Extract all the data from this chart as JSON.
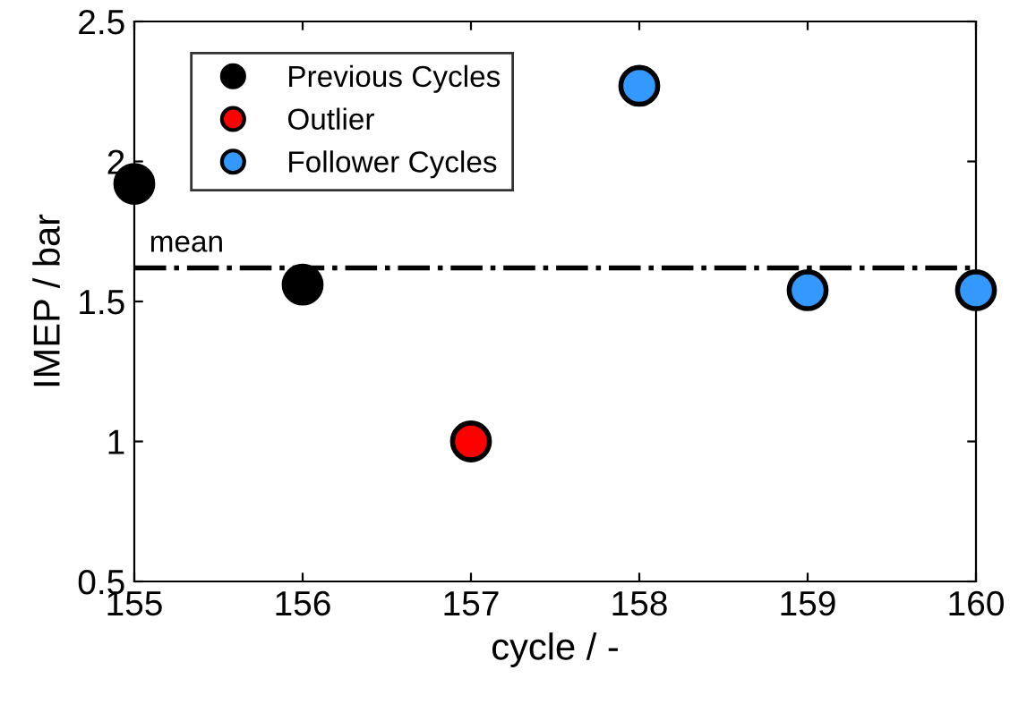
{
  "chart_data": {
    "type": "scatter",
    "xlabel": "cycle / -",
    "ylabel": "IMEP / bar",
    "xlim": [
      155,
      160
    ],
    "xticks": [
      155,
      156,
      157,
      158,
      159,
      160
    ],
    "ylim": [
      0.5,
      2.5
    ],
    "yticks": [
      0.5,
      1,
      1.5,
      2,
      2.5
    ],
    "series": [
      {
        "name": "Previous Cycles",
        "color": "#000000",
        "x": [
          155,
          156
        ],
        "values": [
          1.92,
          1.56
        ]
      },
      {
        "name": "Outlier",
        "color": "#ff0000",
        "x": [
          157
        ],
        "values": [
          1.0
        ]
      },
      {
        "name": "Follower Cycles",
        "color": "#3399ff",
        "x": [
          158,
          159,
          160
        ],
        "values": [
          2.27,
          1.54,
          1.54
        ]
      }
    ],
    "ref_lines": [
      {
        "axis": "y",
        "value": 1.62,
        "label": "mean",
        "color": "#000000",
        "line_style": "dashdot"
      }
    ],
    "marker": "circle",
    "legend": "top left",
    "grid": false
  }
}
